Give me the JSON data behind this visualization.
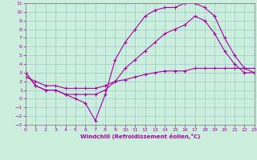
{
  "xlabel": "Windchill (Refroidissement éolien,°C)",
  "bg_color": "#cceedd",
  "line_color": "#aa00aa",
  "grid_color": "#99cccc",
  "xlim": [
    0,
    23
  ],
  "ylim": [
    -3,
    11
  ],
  "xticks": [
    0,
    1,
    2,
    3,
    4,
    5,
    6,
    7,
    8,
    9,
    10,
    11,
    12,
    13,
    14,
    15,
    16,
    17,
    18,
    19,
    20,
    21,
    22,
    23
  ],
  "yticks": [
    -3,
    -2,
    -1,
    0,
    1,
    2,
    3,
    4,
    5,
    6,
    7,
    8,
    9,
    10,
    11
  ],
  "curve1_x": [
    0,
    1,
    2,
    3,
    4,
    5,
    6,
    7,
    8,
    9,
    10,
    11,
    12,
    13,
    14,
    15,
    16,
    17,
    18,
    19,
    20,
    21,
    22,
    23
  ],
  "curve1_y": [
    3.0,
    1.5,
    1.0,
    1.0,
    0.5,
    0.0,
    -0.5,
    -2.5,
    0.5,
    4.5,
    6.5,
    8.0,
    9.5,
    10.2,
    10.5,
    10.5,
    11.0,
    11.0,
    10.5,
    9.5,
    7.0,
    5.0,
    3.5,
    3.0
  ],
  "curve2_x": [
    0,
    1,
    2,
    3,
    4,
    5,
    6,
    7,
    8,
    9,
    10,
    11,
    12,
    13,
    14,
    15,
    16,
    17,
    18,
    19,
    20,
    21,
    22,
    23
  ],
  "curve2_y": [
    3.0,
    1.5,
    1.0,
    1.0,
    0.5,
    0.5,
    0.5,
    0.5,
    1.0,
    2.0,
    3.5,
    4.5,
    5.5,
    6.5,
    7.5,
    8.0,
    8.5,
    9.5,
    9.0,
    7.5,
    5.5,
    4.0,
    3.0,
    3.0
  ],
  "curve3_x": [
    0,
    1,
    2,
    3,
    4,
    5,
    6,
    7,
    8,
    9,
    10,
    11,
    12,
    13,
    14,
    15,
    16,
    17,
    18,
    19,
    20,
    21,
    22,
    23
  ],
  "curve3_y": [
    2.5,
    2.0,
    1.5,
    1.5,
    1.2,
    1.2,
    1.2,
    1.2,
    1.5,
    2.0,
    2.2,
    2.5,
    2.8,
    3.0,
    3.2,
    3.2,
    3.2,
    3.5,
    3.5,
    3.5,
    3.5,
    3.5,
    3.5,
    3.5
  ]
}
